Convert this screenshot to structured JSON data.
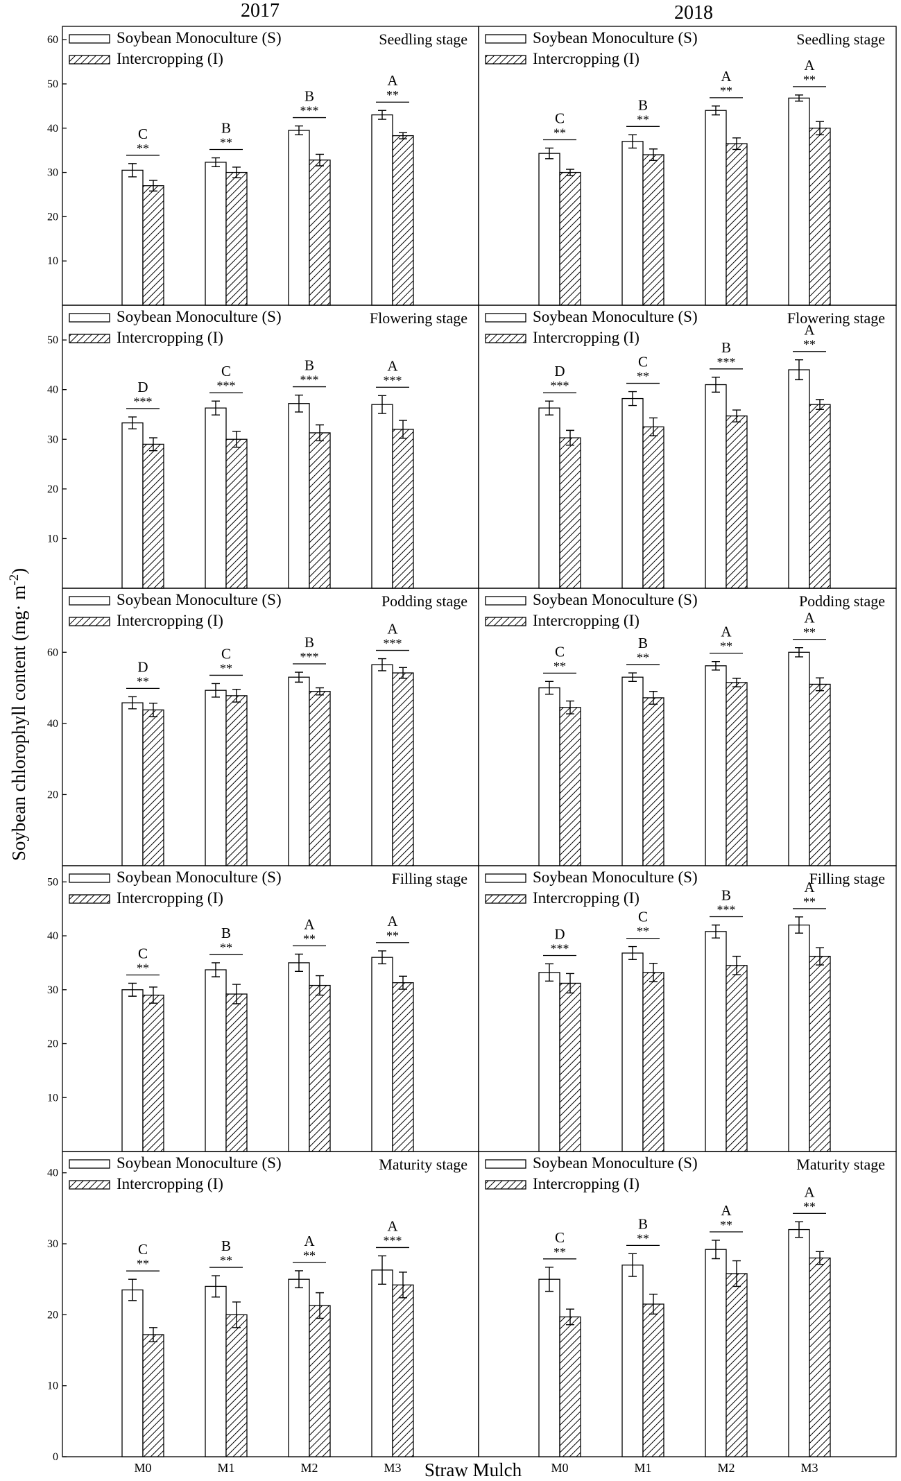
{
  "years": [
    "2017",
    "2018"
  ],
  "ylabel_main": "Soybean chlorophyll content (mg· m",
  "ylabel_sup": "-2",
  "ylabel_close": ")",
  "xlabel": "Straw Mulch",
  "legend": {
    "s": "Soybean Monoculture (S)",
    "i": "Intercropping (I)"
  },
  "categories": [
    "M0",
    "M1",
    "M2",
    "M3"
  ],
  "chart_data": [
    {
      "type": "bar",
      "year": "2017",
      "stage": "Seedling stage",
      "ylim": [
        0,
        63
      ],
      "yticks": [
        10,
        20,
        30,
        40,
        50,
        60
      ],
      "series": [
        {
          "name": "Soybean Monoculture (S)",
          "values": [
            30.5,
            32.3,
            39.5,
            43.0
          ],
          "errors": [
            1.5,
            1.0,
            1.0,
            1.0
          ]
        },
        {
          "name": "Intercropping (I)",
          "values": [
            27.0,
            30.0,
            32.8,
            38.3
          ],
          "errors": [
            1.2,
            1.2,
            1.3,
            0.7
          ]
        }
      ],
      "significance": [
        "**",
        "**",
        "***",
        "**"
      ],
      "letters": [
        "C",
        "B",
        "B",
        "A"
      ]
    },
    {
      "type": "bar",
      "year": "2018",
      "stage": "Seedling stage",
      "ylim": [
        0,
        63
      ],
      "yticks": [],
      "series": [
        {
          "name": "Soybean Monoculture (S)",
          "values": [
            34.3,
            37.0,
            44.0,
            46.8
          ],
          "errors": [
            1.2,
            1.5,
            1.0,
            0.7
          ]
        },
        {
          "name": "Intercropping (I)",
          "values": [
            30.0,
            34.0,
            36.5,
            40.0
          ],
          "errors": [
            0.7,
            1.3,
            1.3,
            1.5
          ]
        }
      ],
      "significance": [
        "**",
        "**",
        "**",
        "**"
      ],
      "letters": [
        "C",
        "B",
        "A",
        "A"
      ]
    },
    {
      "type": "bar",
      "year": "2017",
      "stage": "Flowering stage",
      "ylim": [
        0,
        57
      ],
      "yticks": [
        10,
        20,
        30,
        40,
        50
      ],
      "series": [
        {
          "name": "Soybean Monoculture (S)",
          "values": [
            33.3,
            36.3,
            37.2,
            37.0
          ],
          "errors": [
            1.2,
            1.4,
            1.7,
            1.8
          ]
        },
        {
          "name": "Intercropping (I)",
          "values": [
            29.0,
            30.0,
            31.3,
            32.0
          ],
          "errors": [
            1.3,
            1.6,
            1.6,
            1.8
          ]
        }
      ],
      "significance": [
        "***",
        "***",
        "***",
        "***"
      ],
      "letters": [
        "D",
        "C",
        "B",
        "A"
      ]
    },
    {
      "type": "bar",
      "year": "2018",
      "stage": "Flowering stage",
      "ylim": [
        0,
        57
      ],
      "yticks": [],
      "series": [
        {
          "name": "Soybean Monoculture (S)",
          "values": [
            36.3,
            38.2,
            41.0,
            44.0
          ],
          "errors": [
            1.4,
            1.4,
            1.5,
            2.0
          ]
        },
        {
          "name": "Intercropping (I)",
          "values": [
            30.3,
            32.5,
            34.7,
            37.0
          ],
          "errors": [
            1.5,
            1.8,
            1.2,
            1.0
          ]
        }
      ],
      "significance": [
        "***",
        "**",
        "***",
        "**"
      ],
      "letters": [
        "D",
        "C",
        "B",
        "A"
      ]
    },
    {
      "type": "bar",
      "year": "2017",
      "stage": "Podding stage",
      "ylim": [
        0,
        78
      ],
      "yticks": [
        20,
        40,
        60
      ],
      "series": [
        {
          "name": "Soybean Monoculture (S)",
          "values": [
            45.8,
            49.3,
            53.0,
            56.5
          ],
          "errors": [
            1.7,
            1.9,
            1.4,
            1.7
          ]
        },
        {
          "name": "Intercropping (I)",
          "values": [
            43.8,
            47.8,
            49.0,
            54.2
          ],
          "errors": [
            1.9,
            1.8,
            1.0,
            1.5
          ]
        }
      ],
      "significance": [
        "**",
        "**",
        "***",
        "***"
      ],
      "letters": [
        "D",
        "C",
        "B",
        "A"
      ]
    },
    {
      "type": "bar",
      "year": "2018",
      "stage": "Podding stage",
      "ylim": [
        0,
        78
      ],
      "yticks": [],
      "series": [
        {
          "name": "Soybean Monoculture (S)",
          "values": [
            50.0,
            53.0,
            56.2,
            60.0
          ],
          "errors": [
            1.8,
            1.2,
            1.2,
            1.3
          ]
        },
        {
          "name": "Intercropping (I)",
          "values": [
            44.5,
            47.2,
            51.5,
            51.0
          ],
          "errors": [
            1.8,
            1.8,
            1.2,
            1.8
          ]
        }
      ],
      "significance": [
        "**",
        "**",
        "**",
        "**"
      ],
      "letters": [
        "C",
        "B",
        "A",
        "A"
      ]
    },
    {
      "type": "bar",
      "year": "2017",
      "stage": "Filling stage",
      "ylim": [
        0,
        53
      ],
      "yticks": [
        10,
        20,
        30,
        40,
        50
      ],
      "series": [
        {
          "name": "Soybean Monoculture (S)",
          "values": [
            30.0,
            33.7,
            35.0,
            36.0
          ],
          "errors": [
            1.2,
            1.3,
            1.6,
            1.2
          ]
        },
        {
          "name": "Intercropping (I)",
          "values": [
            29.0,
            29.2,
            30.8,
            31.3
          ],
          "errors": [
            1.5,
            1.8,
            1.8,
            1.2
          ]
        }
      ],
      "significance": [
        "**",
        "**",
        "**",
        "**"
      ],
      "letters": [
        "C",
        "B",
        "A",
        "A"
      ]
    },
    {
      "type": "bar",
      "year": "2018",
      "stage": "Filling stage",
      "ylim": [
        0,
        53
      ],
      "yticks": [],
      "series": [
        {
          "name": "Soybean Monoculture (S)",
          "values": [
            33.2,
            36.8,
            40.8,
            42.0
          ],
          "errors": [
            1.6,
            1.2,
            1.2,
            1.5
          ]
        },
        {
          "name": "Intercropping (I)",
          "values": [
            31.2,
            33.2,
            34.5,
            36.2
          ],
          "errors": [
            1.8,
            1.7,
            1.7,
            1.6
          ]
        }
      ],
      "significance": [
        "***",
        "**",
        "***",
        "**"
      ],
      "letters": [
        "D",
        "C",
        "B",
        "A"
      ]
    },
    {
      "type": "bar",
      "year": "2017",
      "stage": "Maturity stage",
      "ylim": [
        0,
        43
      ],
      "yticks": [
        0,
        10,
        20,
        30,
        40
      ],
      "series": [
        {
          "name": "Soybean Monoculture (S)",
          "values": [
            23.5,
            24.0,
            25.0,
            26.3
          ],
          "errors": [
            1.5,
            1.5,
            1.2,
            2.0
          ]
        },
        {
          "name": "Intercropping (I)",
          "values": [
            17.2,
            20.0,
            21.3,
            24.2
          ],
          "errors": [
            1.0,
            1.8,
            1.8,
            1.8
          ]
        }
      ],
      "significance": [
        "**",
        "**",
        "**",
        "***"
      ],
      "letters": [
        "C",
        "B",
        "A",
        "A"
      ]
    },
    {
      "type": "bar",
      "year": "2018",
      "stage": "Maturity stage",
      "ylim": [
        0,
        43
      ],
      "yticks": [],
      "series": [
        {
          "name": "Soybean Monoculture (S)",
          "values": [
            25.0,
            27.0,
            29.2,
            32.0
          ],
          "errors": [
            1.7,
            1.6,
            1.3,
            1.1
          ]
        },
        {
          "name": "Intercropping (I)",
          "values": [
            19.7,
            21.5,
            25.8,
            28.0
          ],
          "errors": [
            1.1,
            1.4,
            1.8,
            0.9
          ]
        }
      ],
      "significance": [
        "**",
        "**",
        "**",
        "**"
      ],
      "letters": [
        "C",
        "B",
        "A",
        "A"
      ]
    }
  ]
}
